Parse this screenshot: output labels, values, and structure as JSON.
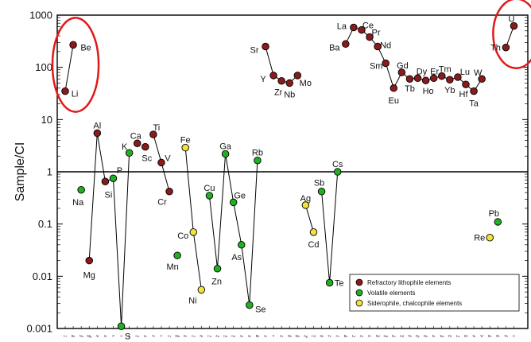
{
  "chart_data": {
    "type": "scatter",
    "ylabel": "Sample/CI",
    "yscale": "log",
    "ylim": [
      0.001,
      1000
    ],
    "y_ticks": [
      "0.001",
      "0.01",
      "0.1",
      "1",
      "10",
      "100",
      "1000"
    ],
    "reference_line": 1,
    "series_colors": {
      "refractory": "#8b1a1a",
      "volatile": "#22b022",
      "siderophile": "#f2e23a"
    },
    "legend": {
      "position": "bottom-right",
      "entries": [
        {
          "series": "refractory",
          "label": "Refractory lithophile elements"
        },
        {
          "series": "volatile",
          "label": "Volatile elements"
        },
        {
          "series": "siderophile",
          "label": "Siderophile, chalcophile elements"
        }
      ]
    },
    "x_tick_labels": [
      "Li",
      "Be",
      "Na",
      "Mg",
      "Al",
      "Si",
      "P",
      "S",
      "K",
      "Ca",
      "Sc",
      "Ti",
      "V",
      "Cr",
      "Mn",
      "Fe",
      "Co",
      "Ni",
      "Cu",
      "Zn",
      "Ga",
      "Ge",
      "As",
      "Se",
      "Rb",
      "Sr",
      "Y",
      "Zr",
      "Nb",
      "Mo",
      "Ag",
      "Cd",
      "Sb",
      "Te",
      "Cs",
      "Ba",
      "La",
      "Ce",
      "Pr",
      "Nd",
      "Sm",
      "Eu",
      "Gd",
      "Tb",
      "Dy",
      "Ho",
      "Er",
      "Tm",
      "Yb",
      "Lu",
      "Hf",
      "Ta",
      "W",
      "Re",
      "Pb",
      "Th",
      "U"
    ],
    "points": [
      {
        "el": "Li",
        "x": 0,
        "y": 35,
        "s": "refractory"
      },
      {
        "el": "Be",
        "x": 1,
        "y": 270,
        "s": "refractory"
      },
      {
        "el": "Na",
        "x": 2,
        "y": 0.45,
        "s": "volatile"
      },
      {
        "el": "Mg",
        "x": 3,
        "y": 0.02,
        "s": "refractory"
      },
      {
        "el": "Al",
        "x": 4,
        "y": 5.5,
        "s": "refractory"
      },
      {
        "el": "Si",
        "x": 5,
        "y": 0.65,
        "s": "refractory"
      },
      {
        "el": "P",
        "x": 6,
        "y": 0.75,
        "s": "volatile"
      },
      {
        "el": "S",
        "x": 7,
        "y": 0.0011,
        "s": "volatile"
      },
      {
        "el": "K",
        "x": 8,
        "y": 2.3,
        "s": "volatile"
      },
      {
        "el": "Ca",
        "x": 9,
        "y": 3.5,
        "s": "refractory"
      },
      {
        "el": "Sc",
        "x": 10,
        "y": 3.0,
        "s": "refractory"
      },
      {
        "el": "Ti",
        "x": 11,
        "y": 5.2,
        "s": "refractory"
      },
      {
        "el": "V",
        "x": 12,
        "y": 1.5,
        "s": "refractory"
      },
      {
        "el": "Cr",
        "x": 13,
        "y": 0.42,
        "s": "refractory"
      },
      {
        "el": "Mn",
        "x": 14,
        "y": 0.025,
        "s": "volatile"
      },
      {
        "el": "Fe",
        "x": 15,
        "y": 2.9,
        "s": "siderophile"
      },
      {
        "el": "Co",
        "x": 16,
        "y": 0.07,
        "s": "siderophile"
      },
      {
        "el": "Ni",
        "x": 17,
        "y": 0.0055,
        "s": "siderophile"
      },
      {
        "el": "Cu",
        "x": 18,
        "y": 0.35,
        "s": "volatile"
      },
      {
        "el": "Zn",
        "x": 19,
        "y": 0.014,
        "s": "volatile"
      },
      {
        "el": "Ga",
        "x": 20,
        "y": 2.2,
        "s": "volatile"
      },
      {
        "el": "Ge",
        "x": 21,
        "y": 0.26,
        "s": "volatile"
      },
      {
        "el": "As",
        "x": 22,
        "y": 0.04,
        "s": "volatile"
      },
      {
        "el": "Se",
        "x": 23,
        "y": 0.0028,
        "s": "volatile"
      },
      {
        "el": "Rb",
        "x": 24,
        "y": 1.65,
        "s": "volatile"
      },
      {
        "el": "Sr",
        "x": 25,
        "y": 250,
        "s": "refractory"
      },
      {
        "el": "Y",
        "x": 26,
        "y": 70,
        "s": "refractory"
      },
      {
        "el": "Zr",
        "x": 27,
        "y": 55,
        "s": "refractory"
      },
      {
        "el": "Nb",
        "x": 28,
        "y": 50,
        "s": "refractory"
      },
      {
        "el": "Mo",
        "x": 29,
        "y": 70,
        "s": "refractory"
      },
      {
        "el": "Ag",
        "x": 30,
        "y": 0.23,
        "s": "siderophile"
      },
      {
        "el": "Cd",
        "x": 31,
        "y": 0.07,
        "s": "siderophile"
      },
      {
        "el": "Sb",
        "x": 32,
        "y": 0.42,
        "s": "volatile"
      },
      {
        "el": "Te",
        "x": 33,
        "y": 0.0075,
        "s": "volatile"
      },
      {
        "el": "Cs",
        "x": 34,
        "y": 1.0,
        "s": "volatile"
      },
      {
        "el": "Ba",
        "x": 35,
        "y": 280,
        "s": "refractory"
      },
      {
        "el": "La",
        "x": 36,
        "y": 580,
        "s": "refractory"
      },
      {
        "el": "Ce",
        "x": 37,
        "y": 520,
        "s": "refractory"
      },
      {
        "el": "Pr",
        "x": 38,
        "y": 380,
        "s": "refractory"
      },
      {
        "el": "Nd",
        "x": 39,
        "y": 250,
        "s": "refractory"
      },
      {
        "el": "Sm",
        "x": 40,
        "y": 120,
        "s": "refractory"
      },
      {
        "el": "Eu",
        "x": 41,
        "y": 40,
        "s": "refractory"
      },
      {
        "el": "Gd",
        "x": 42,
        "y": 80,
        "s": "refractory"
      },
      {
        "el": "Tb",
        "x": 43,
        "y": 60,
        "s": "refractory"
      },
      {
        "el": "Dy",
        "x": 44,
        "y": 62,
        "s": "refractory"
      },
      {
        "el": "Ho",
        "x": 45,
        "y": 56,
        "s": "refractory"
      },
      {
        "el": "Er",
        "x": 46,
        "y": 62,
        "s": "refractory"
      },
      {
        "el": "Tm",
        "x": 47,
        "y": 68,
        "s": "refractory"
      },
      {
        "el": "Yb",
        "x": 48,
        "y": 58,
        "s": "refractory"
      },
      {
        "el": "Lu",
        "x": 49,
        "y": 65,
        "s": "refractory"
      },
      {
        "el": "Hf",
        "x": 50,
        "y": 47,
        "s": "refractory"
      },
      {
        "el": "Ta",
        "x": 51,
        "y": 35,
        "s": "refractory"
      },
      {
        "el": "W",
        "x": 52,
        "y": 60,
        "s": "refractory"
      },
      {
        "el": "Re",
        "x": 53,
        "y": 0.055,
        "s": "siderophile"
      },
      {
        "el": "Pb",
        "x": 54,
        "y": 0.11,
        "s": "volatile"
      },
      {
        "el": "Th",
        "x": 55,
        "y": 240,
        "s": "refractory"
      },
      {
        "el": "U",
        "x": 56,
        "y": 620,
        "s": "refractory"
      }
    ],
    "line_segments": [
      [
        "Li",
        "Be"
      ],
      [
        "Mg",
        "Al",
        "Si",
        "P",
        "S",
        "K"
      ],
      [
        "Ti",
        "V",
        "Cr"
      ],
      [
        "Fe",
        "Co",
        "Ni"
      ],
      [
        "Cu",
        "Zn",
        "Ga",
        "Ge",
        "As",
        "Se",
        "Rb"
      ],
      [
        "Sr",
        "Y",
        "Zr",
        "Nb",
        "Mo"
      ],
      [
        "Ag",
        "Cd"
      ],
      [
        "Sb",
        "Te",
        "Cs"
      ],
      [
        "Ba",
        "La",
        "Ce",
        "Pr",
        "Nd",
        "Sm",
        "Eu",
        "Gd",
        "Tb",
        "Dy",
        "Ho",
        "Er",
        "Tm",
        "Yb",
        "Lu",
        "Hf",
        "Ta",
        "W"
      ],
      [
        "Th",
        "U"
      ]
    ],
    "highlight_circles": [
      {
        "around": [
          "Li",
          "Be"
        ],
        "color": "#e01818"
      },
      {
        "around": [
          "Th",
          "U"
        ],
        "color": "#e01818"
      }
    ]
  }
}
